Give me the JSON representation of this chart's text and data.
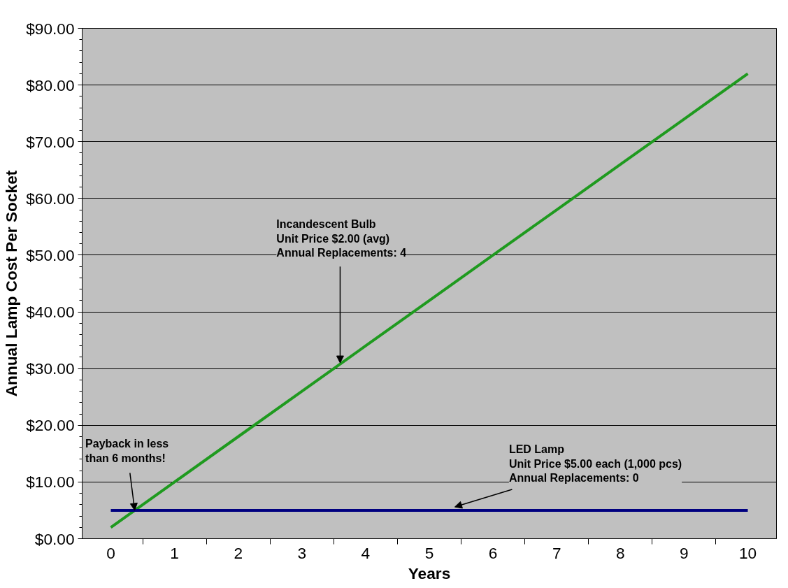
{
  "chart_data": {
    "type": "line",
    "xlabel": "Years",
    "ylabel": "Annual Lamp Cost Per Socket",
    "x": [
      0,
      1,
      2,
      3,
      4,
      5,
      6,
      7,
      8,
      9,
      10
    ],
    "series": [
      {
        "color": "#1f9a1f",
        "values": [
          2,
          10,
          18,
          26,
          34,
          42,
          50,
          58,
          66,
          74,
          82
        ]
      },
      {
        "color": "#000080",
        "values": [
          5,
          5,
          5,
          5,
          5,
          5,
          5,
          5,
          5,
          5,
          5
        ]
      }
    ],
    "xlim": [
      -0.45,
      10.45
    ],
    "xticks": [
      0,
      1,
      2,
      3,
      4,
      5,
      6,
      7,
      8,
      9,
      10
    ],
    "ylim": [
      0,
      90
    ],
    "yticks": [
      {
        "value": 0,
        "label": "$0.00"
      },
      {
        "value": 10,
        "label": "$10.00"
      },
      {
        "value": 20,
        "label": "$20.00"
      },
      {
        "value": 30,
        "label": "$30.00"
      },
      {
        "value": 40,
        "label": "$40.00"
      },
      {
        "value": 50,
        "label": "$50.00"
      },
      {
        "value": 60,
        "label": "$60.00"
      },
      {
        "value": 70,
        "label": "$70.00"
      },
      {
        "value": 80,
        "label": "$80.00"
      },
      {
        "value": 90,
        "label": "$90.00"
      }
    ],
    "grid": "y",
    "marker": "none",
    "line_style": "solid",
    "annotations": [
      {
        "text": "Incandescent Bulb\nUnit Price $2.00 (avg)\nAnnual Replacements: 4",
        "x": 3.6,
        "y": 31
      },
      {
        "text": "Payback in less\nthan 6 months!",
        "x": 0.375,
        "y": 5
      },
      {
        "text": "LED Lamp\nUnit Price $5.00 each (1,000 pcs)\nAnnual Replacements: 0",
        "x": 5.4,
        "y": 5.6
      }
    ]
  }
}
